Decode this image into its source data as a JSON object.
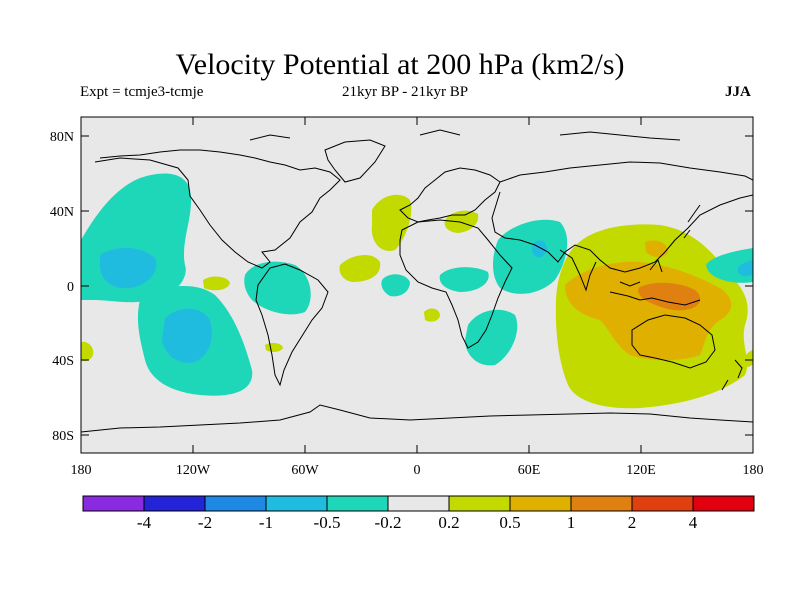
{
  "title": "Velocity Potential at 200 hPa (km2/s)",
  "experiment": "Expt = tcmje3-tcmje",
  "period": "21kyr BP - 21kyr BP",
  "season": "JJA",
  "axes": {
    "lat_labels": [
      "80N",
      "40N",
      "0",
      "40S",
      "80S"
    ],
    "lon_labels": [
      "180",
      "120W",
      "60W",
      "0",
      "60E",
      "120E",
      "180"
    ]
  },
  "colorbar": {
    "labels": [
      "-4",
      "-2",
      "-1",
      "-0.5",
      "-0.2",
      "0.2",
      "0.5",
      "1",
      "2",
      "4"
    ],
    "colors": [
      "#8a2be2",
      "#2323d8",
      "#1e88e5",
      "#20bce0",
      "#1ed7b8",
      "#e8e8e8",
      "#c2da00",
      "#e0b000",
      "#e08010",
      "#e04010",
      "#e00010"
    ]
  },
  "map_colors": {
    "ocean_land": "#e8e8e8",
    "cyan": "#1ed7b8",
    "blue": "#20bce0",
    "green": "#c2da00",
    "orange": "#e0b000",
    "dark_orange": "#e08010"
  }
}
